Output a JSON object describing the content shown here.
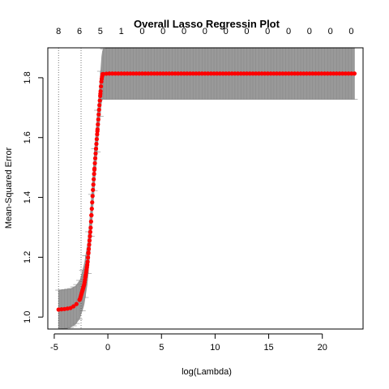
{
  "chart_data": {
    "type": "scatter",
    "title": "Overall Lasso Regressin Plot",
    "xlabel": "log(Lambda)",
    "ylabel": "Mean-Squared Error",
    "xlim": [
      -5.6,
      23.8
    ],
    "ylim": [
      0.96,
      1.9
    ],
    "xticks": [
      -5,
      0,
      5,
      10,
      15,
      20
    ],
    "yticks": [
      1.0,
      1.2,
      1.4,
      1.6,
      1.8
    ],
    "xtick_labels": [
      "-5",
      "0",
      "5",
      "10",
      "15",
      "20"
    ],
    "ytick_labels": [
      "1.0",
      "1.2",
      "1.4",
      "1.6",
      "1.8"
    ],
    "top_axis": {
      "ticks": [
        -4.6,
        -2.65,
        -0.7,
        1.25,
        3.2,
        5.15,
        7.1,
        9.05,
        11.0,
        12.95,
        14.9,
        16.85,
        18.8,
        20.75,
        22.7
      ],
      "labels": [
        "8",
        "6",
        "5",
        "1",
        "0",
        "0",
        "0",
        "0",
        "0",
        "0",
        "0",
        "0",
        "0",
        "0",
        "0"
      ]
    },
    "reference_lines_x": [
      -4.6,
      -2.5
    ],
    "point_color": "#ff0000",
    "band_color": "#999999",
    "grid": false,
    "legend": "none",
    "series": [
      {
        "x": [
          -4.6,
          -4.0,
          -3.5,
          -3.0,
          -2.6,
          -2.2,
          -1.9,
          -1.6,
          -1.4,
          -1.2,
          -1.0,
          -0.85,
          -0.7,
          -0.6,
          -0.5,
          0.0,
          5.0,
          10.0,
          15.0,
          20.0,
          23.0
        ],
        "y": [
          1.025,
          1.027,
          1.03,
          1.04,
          1.06,
          1.11,
          1.18,
          1.3,
          1.42,
          1.52,
          1.61,
          1.68,
          1.745,
          1.79,
          1.812,
          1.814,
          1.814,
          1.814,
          1.814,
          1.814,
          1.814
        ],
        "lower": [
          0.96,
          0.962,
          0.965,
          0.975,
          0.995,
          1.04,
          1.11,
          1.23,
          1.35,
          1.45,
          1.54,
          1.61,
          1.67,
          1.71,
          1.728,
          1.728,
          1.728,
          1.728,
          1.728,
          1.728,
          1.728
        ],
        "upper": [
          1.09,
          1.092,
          1.095,
          1.105,
          1.125,
          1.18,
          1.25,
          1.37,
          1.49,
          1.59,
          1.68,
          1.75,
          1.82,
          1.87,
          1.896,
          1.9,
          1.9,
          1.9,
          1.9,
          1.9,
          1.9
        ]
      }
    ]
  }
}
